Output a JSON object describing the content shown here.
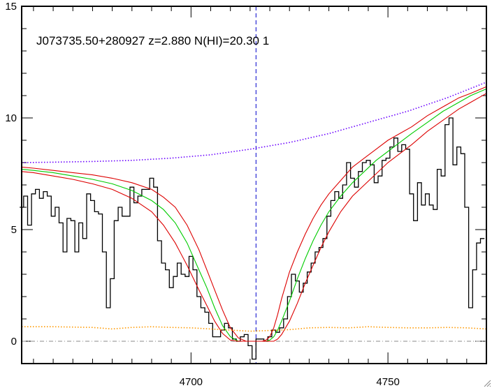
{
  "chart_data": {
    "type": "line",
    "title": "J073735.50+280927 z=2.880 N(HI)=20.30 1",
    "xlabel": "",
    "ylabel": "",
    "xlim": [
      4657,
      4775
    ],
    "ylim": [
      -1,
      15
    ],
    "xticks": [
      4700,
      4750
    ],
    "yticks": [
      0,
      5,
      10,
      15
    ],
    "x_minor_step": 5,
    "y_minor_step": 1,
    "grid": false,
    "legend": "none",
    "zero_line": 0,
    "vertical_marker_x": 4716.5,
    "colors": {
      "spectrum": "#000000",
      "model": "#00cc00",
      "model_bounds": "#dd0000",
      "continuum": "#6a00ff",
      "error": "#ff9900",
      "zero_line": "#888888",
      "marker": "#0000cc"
    },
    "series": [
      {
        "style": "step",
        "color": "#000000",
        "x": [
          4657,
          4658,
          4659,
          4660,
          4661,
          4662,
          4663,
          4664,
          4665,
          4666,
          4667,
          4668,
          4669,
          4670,
          4671,
          4672,
          4673,
          4674,
          4675,
          4676,
          4677,
          4678,
          4679,
          4680,
          4681,
          4682,
          4683,
          4684,
          4685,
          4686,
          4687,
          4688,
          4689,
          4690,
          4691,
          4692,
          4693,
          4694,
          4695,
          4696,
          4697,
          4698,
          4699,
          4700,
          4701,
          4702,
          4703,
          4704,
          4705,
          4706,
          4707,
          4708,
          4709,
          4710,
          4711,
          4712,
          4713,
          4714,
          4715,
          4716,
          4717,
          4718,
          4719,
          4720,
          4721,
          4722,
          4723,
          4724,
          4725,
          4726,
          4727,
          4728,
          4729,
          4730,
          4731,
          4732,
          4733,
          4734,
          4735,
          4736,
          4737,
          4738,
          4739,
          4740,
          4741,
          4742,
          4743,
          4744,
          4745,
          4746,
          4747,
          4748,
          4749,
          4750,
          4751,
          4752,
          4753,
          4754,
          4755,
          4756,
          4757,
          4758,
          4759,
          4760,
          4761,
          4762,
          4763,
          4764,
          4765,
          4766,
          4767,
          4768,
          4769,
          4770,
          4771,
          4772,
          4773,
          4774
        ],
        "y": [
          6.0,
          6.5,
          5.2,
          6.6,
          6.8,
          6.4,
          6.7,
          6.5,
          5.6,
          6.0,
          5.3,
          4.0,
          5.5,
          5.4,
          4.0,
          5.3,
          4.6,
          6.6,
          6.3,
          5.8,
          5.7,
          4.0,
          1.5,
          2.8,
          5.4,
          6.0,
          5.6,
          5.6,
          6.9,
          6.2,
          6.5,
          6.8,
          6.8,
          7.3,
          6.9,
          4.5,
          3.5,
          3.2,
          2.4,
          2.9,
          3.5,
          3.0,
          2.9,
          3.8,
          3.2,
          2.0,
          1.5,
          1.3,
          0.8,
          0.2,
          0.2,
          0.5,
          0.8,
          0.6,
          0.1,
          0.0,
          0.2,
          0.3,
          -0.2,
          -0.8,
          0.1,
          0.1,
          0.0,
          0.2,
          0.5,
          0.4,
          0.6,
          1.0,
          2.0,
          3.0,
          2.7,
          2.2,
          2.6,
          3.1,
          3.5,
          4.0,
          4.2,
          4.6,
          5.6,
          6.3,
          6.7,
          6.4,
          7.0,
          8.0,
          7.3,
          6.9,
          7.6,
          8.0,
          8.1,
          7.9,
          7.1,
          7.4,
          8.1,
          8.2,
          8.7,
          9.1,
          8.5,
          8.8,
          8.6,
          6.6,
          5.4,
          7.1,
          6.1,
          6.6,
          6.1,
          5.9,
          7.7,
          7.4,
          9.7,
          10.0,
          7.9,
          8.7,
          8.4,
          6.0,
          1.5,
          3.2,
          4.4,
          4.6
        ]
      },
      {
        "style": "line",
        "color": "#00cc00",
        "x": [
          4657,
          4660,
          4665,
          4670,
          4675,
          4680,
          4685,
          4690,
          4693,
          4696,
          4699,
          4702,
          4704,
          4706,
          4708,
          4710,
          4712,
          4714,
          4716,
          4718,
          4719,
          4720,
          4721,
          4722,
          4723,
          4725,
          4727,
          4729,
          4731,
          4733,
          4735,
          4738,
          4741,
          4744,
          4747,
          4750,
          4753,
          4756,
          4760,
          4764,
          4768,
          4771,
          4775
        ],
        "y": [
          7.7,
          7.65,
          7.55,
          7.4,
          7.25,
          7.05,
          6.75,
          6.3,
          5.9,
          5.3,
          4.4,
          3.2,
          2.4,
          1.5,
          0.7,
          0.2,
          0.0,
          0.0,
          0.0,
          0.0,
          0.0,
          0.05,
          0.2,
          0.5,
          0.9,
          1.8,
          2.8,
          3.7,
          4.5,
          5.2,
          5.8,
          6.5,
          7.1,
          7.6,
          8.1,
          8.5,
          8.9,
          9.3,
          9.8,
          10.3,
          10.7,
          11.0,
          11.3
        ]
      },
      {
        "style": "line",
        "color": "#dd0000",
        "x": [
          4657,
          4660,
          4665,
          4670,
          4675,
          4680,
          4685,
          4690,
          4693,
          4696,
          4699,
          4702,
          4704,
          4706,
          4708,
          4710,
          4712,
          4714,
          4716,
          4718,
          4719,
          4720,
          4721,
          4722,
          4723,
          4725,
          4727,
          4729,
          4731,
          4733,
          4735,
          4738,
          4741,
          4744,
          4747,
          4750,
          4753,
          4756,
          4760,
          4764,
          4768,
          4771,
          4775
        ],
        "y": [
          7.8,
          7.75,
          7.65,
          7.55,
          7.45,
          7.3,
          7.1,
          6.8,
          6.45,
          6.0,
          5.2,
          4.1,
          3.2,
          2.3,
          1.4,
          0.6,
          0.15,
          0.0,
          0.0,
          0.0,
          0.05,
          0.2,
          0.6,
          1.2,
          1.9,
          3.1,
          4.0,
          4.8,
          5.5,
          6.1,
          6.6,
          7.2,
          7.8,
          8.2,
          8.6,
          9.0,
          9.3,
          9.6,
          10.1,
          10.5,
          10.9,
          11.1,
          11.4
        ]
      },
      {
        "style": "line",
        "color": "#dd0000",
        "x": [
          4657,
          4660,
          4665,
          4670,
          4675,
          4680,
          4685,
          4690,
          4693,
          4696,
          4699,
          4702,
          4704,
          4706,
          4708,
          4710,
          4712,
          4714,
          4716,
          4718,
          4719,
          4720,
          4721,
          4722,
          4723,
          4725,
          4727,
          4729,
          4731,
          4733,
          4735,
          4738,
          4741,
          4744,
          4747,
          4750,
          4753,
          4756,
          4760,
          4764,
          4768,
          4771,
          4775
        ],
        "y": [
          7.6,
          7.55,
          7.4,
          7.25,
          7.05,
          6.8,
          6.4,
          5.8,
          5.2,
          4.4,
          3.4,
          2.3,
          1.6,
          0.9,
          0.35,
          0.05,
          0.0,
          0.0,
          0.0,
          0.0,
          0.0,
          0.0,
          0.0,
          0.1,
          0.3,
          0.9,
          1.7,
          2.6,
          3.4,
          4.2,
          4.9,
          5.8,
          6.5,
          7.0,
          7.5,
          8.0,
          8.4,
          8.8,
          9.4,
          9.9,
          10.4,
          10.7,
          11.1
        ]
      },
      {
        "style": "dotted",
        "color": "#6a00ff",
        "x": [
          4657,
          4665,
          4675,
          4685,
          4695,
          4705,
          4715,
          4725,
          4735,
          4745,
          4755,
          4765,
          4775
        ],
        "y": [
          8.0,
          8.02,
          8.05,
          8.1,
          8.2,
          8.35,
          8.6,
          8.9,
          9.3,
          9.8,
          10.3,
          10.9,
          11.6
        ]
      },
      {
        "style": "dotted",
        "color": "#ff9900",
        "x": [
          4657,
          4665,
          4675,
          4680,
          4685,
          4690,
          4695,
          4700,
          4705,
          4710,
          4715,
          4720,
          4725,
          4730,
          4735,
          4740,
          4745,
          4750,
          4755,
          4760,
          4765,
          4770,
          4775
        ],
        "y": [
          0.65,
          0.65,
          0.62,
          0.55,
          0.62,
          0.65,
          0.62,
          0.6,
          0.55,
          0.5,
          0.45,
          0.48,
          0.52,
          0.6,
          0.62,
          0.6,
          0.65,
          0.62,
          0.6,
          0.6,
          0.62,
          0.6,
          0.55
        ]
      }
    ]
  }
}
